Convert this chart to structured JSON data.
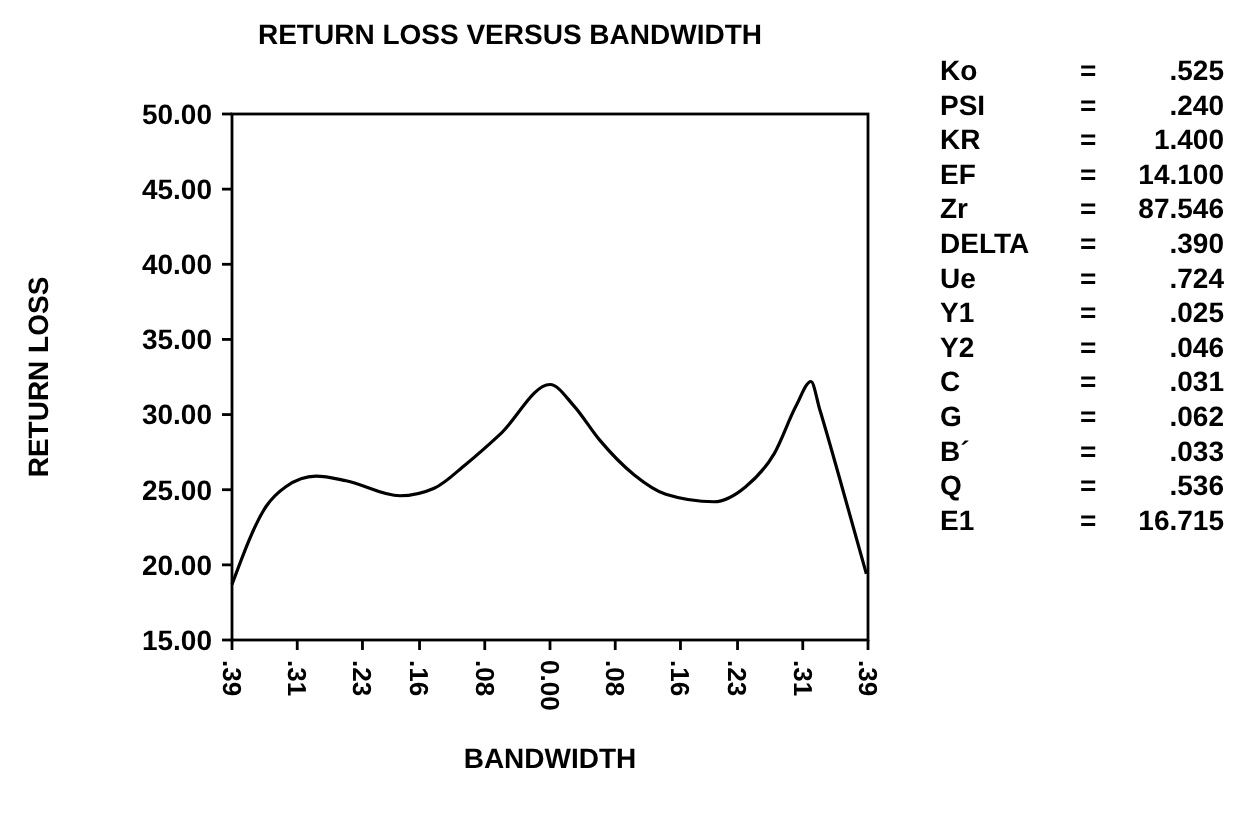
{
  "chart_data": {
    "type": "line",
    "title": "RETURN LOSS VERSUS BANDWIDTH",
    "xlabel": "BANDWIDTH",
    "ylabel": "RETURN LOSS",
    "x": [
      -0.39,
      -0.348,
      -0.324,
      -0.287,
      -0.25,
      -0.184,
      -0.142,
      -0.103,
      -0.061,
      0,
      0.029,
      0.061,
      0.103,
      0.142,
      0.201,
      0.24,
      0.275,
      0.302,
      0.32,
      0.331,
      0.356,
      0.388
    ],
    "series": [
      {
        "color": "#000000",
        "values": [
          18.7,
          23.9,
          25.2,
          25.9,
          25.6,
          24.6,
          25.1,
          26.7,
          28.7,
          32.0,
          30.6,
          28.3,
          26.0,
          24.7,
          24.2,
          25.2,
          27.4,
          30.6,
          32.2,
          30.3,
          25.6,
          19.4
        ]
      }
    ],
    "xlim": [
      -0.39,
      0.39
    ],
    "xticks": [
      {
        "value": -0.39,
        "label": ".39"
      },
      {
        "value": -0.31,
        "label": ".31"
      },
      {
        "value": -0.23,
        "label": ".23"
      },
      {
        "value": -0.16,
        "label": ".16"
      },
      {
        "value": -0.08,
        "label": ".08"
      },
      {
        "value": 0,
        "label": "0.00"
      },
      {
        "value": 0.08,
        "label": ".08"
      },
      {
        "value": 0.16,
        "label": ".16"
      },
      {
        "value": 0.23,
        "label": ".23"
      },
      {
        "value": 0.31,
        "label": ".31"
      },
      {
        "value": 0.39,
        "label": ".39"
      }
    ],
    "ylim": [
      15,
      50
    ],
    "yticks": [
      {
        "value": 15,
        "label": "15.00"
      },
      {
        "value": 20,
        "label": "20.00"
      },
      {
        "value": 25,
        "label": "25.00"
      },
      {
        "value": 30,
        "label": "30.00"
      },
      {
        "value": 35,
        "label": "35.00"
      },
      {
        "value": 40,
        "label": "40.00"
      },
      {
        "value": 45,
        "label": "45.00"
      },
      {
        "value": 50,
        "label": "50.00"
      }
    ],
    "grid": false,
    "marker": "none",
    "line_style": "solid",
    "annotations": [
      "Ko = .525",
      "PSI = .240",
      "KR = 1.400",
      "EF = 14.100",
      "Zr = 87.546",
      "DELTA = .390",
      "Ue = .724",
      "Y1 = .025",
      "Y2 = .046",
      "C = .031",
      "G = .062",
      "B´ = .033",
      "Q = .536",
      "E1 = 16.715"
    ]
  }
}
